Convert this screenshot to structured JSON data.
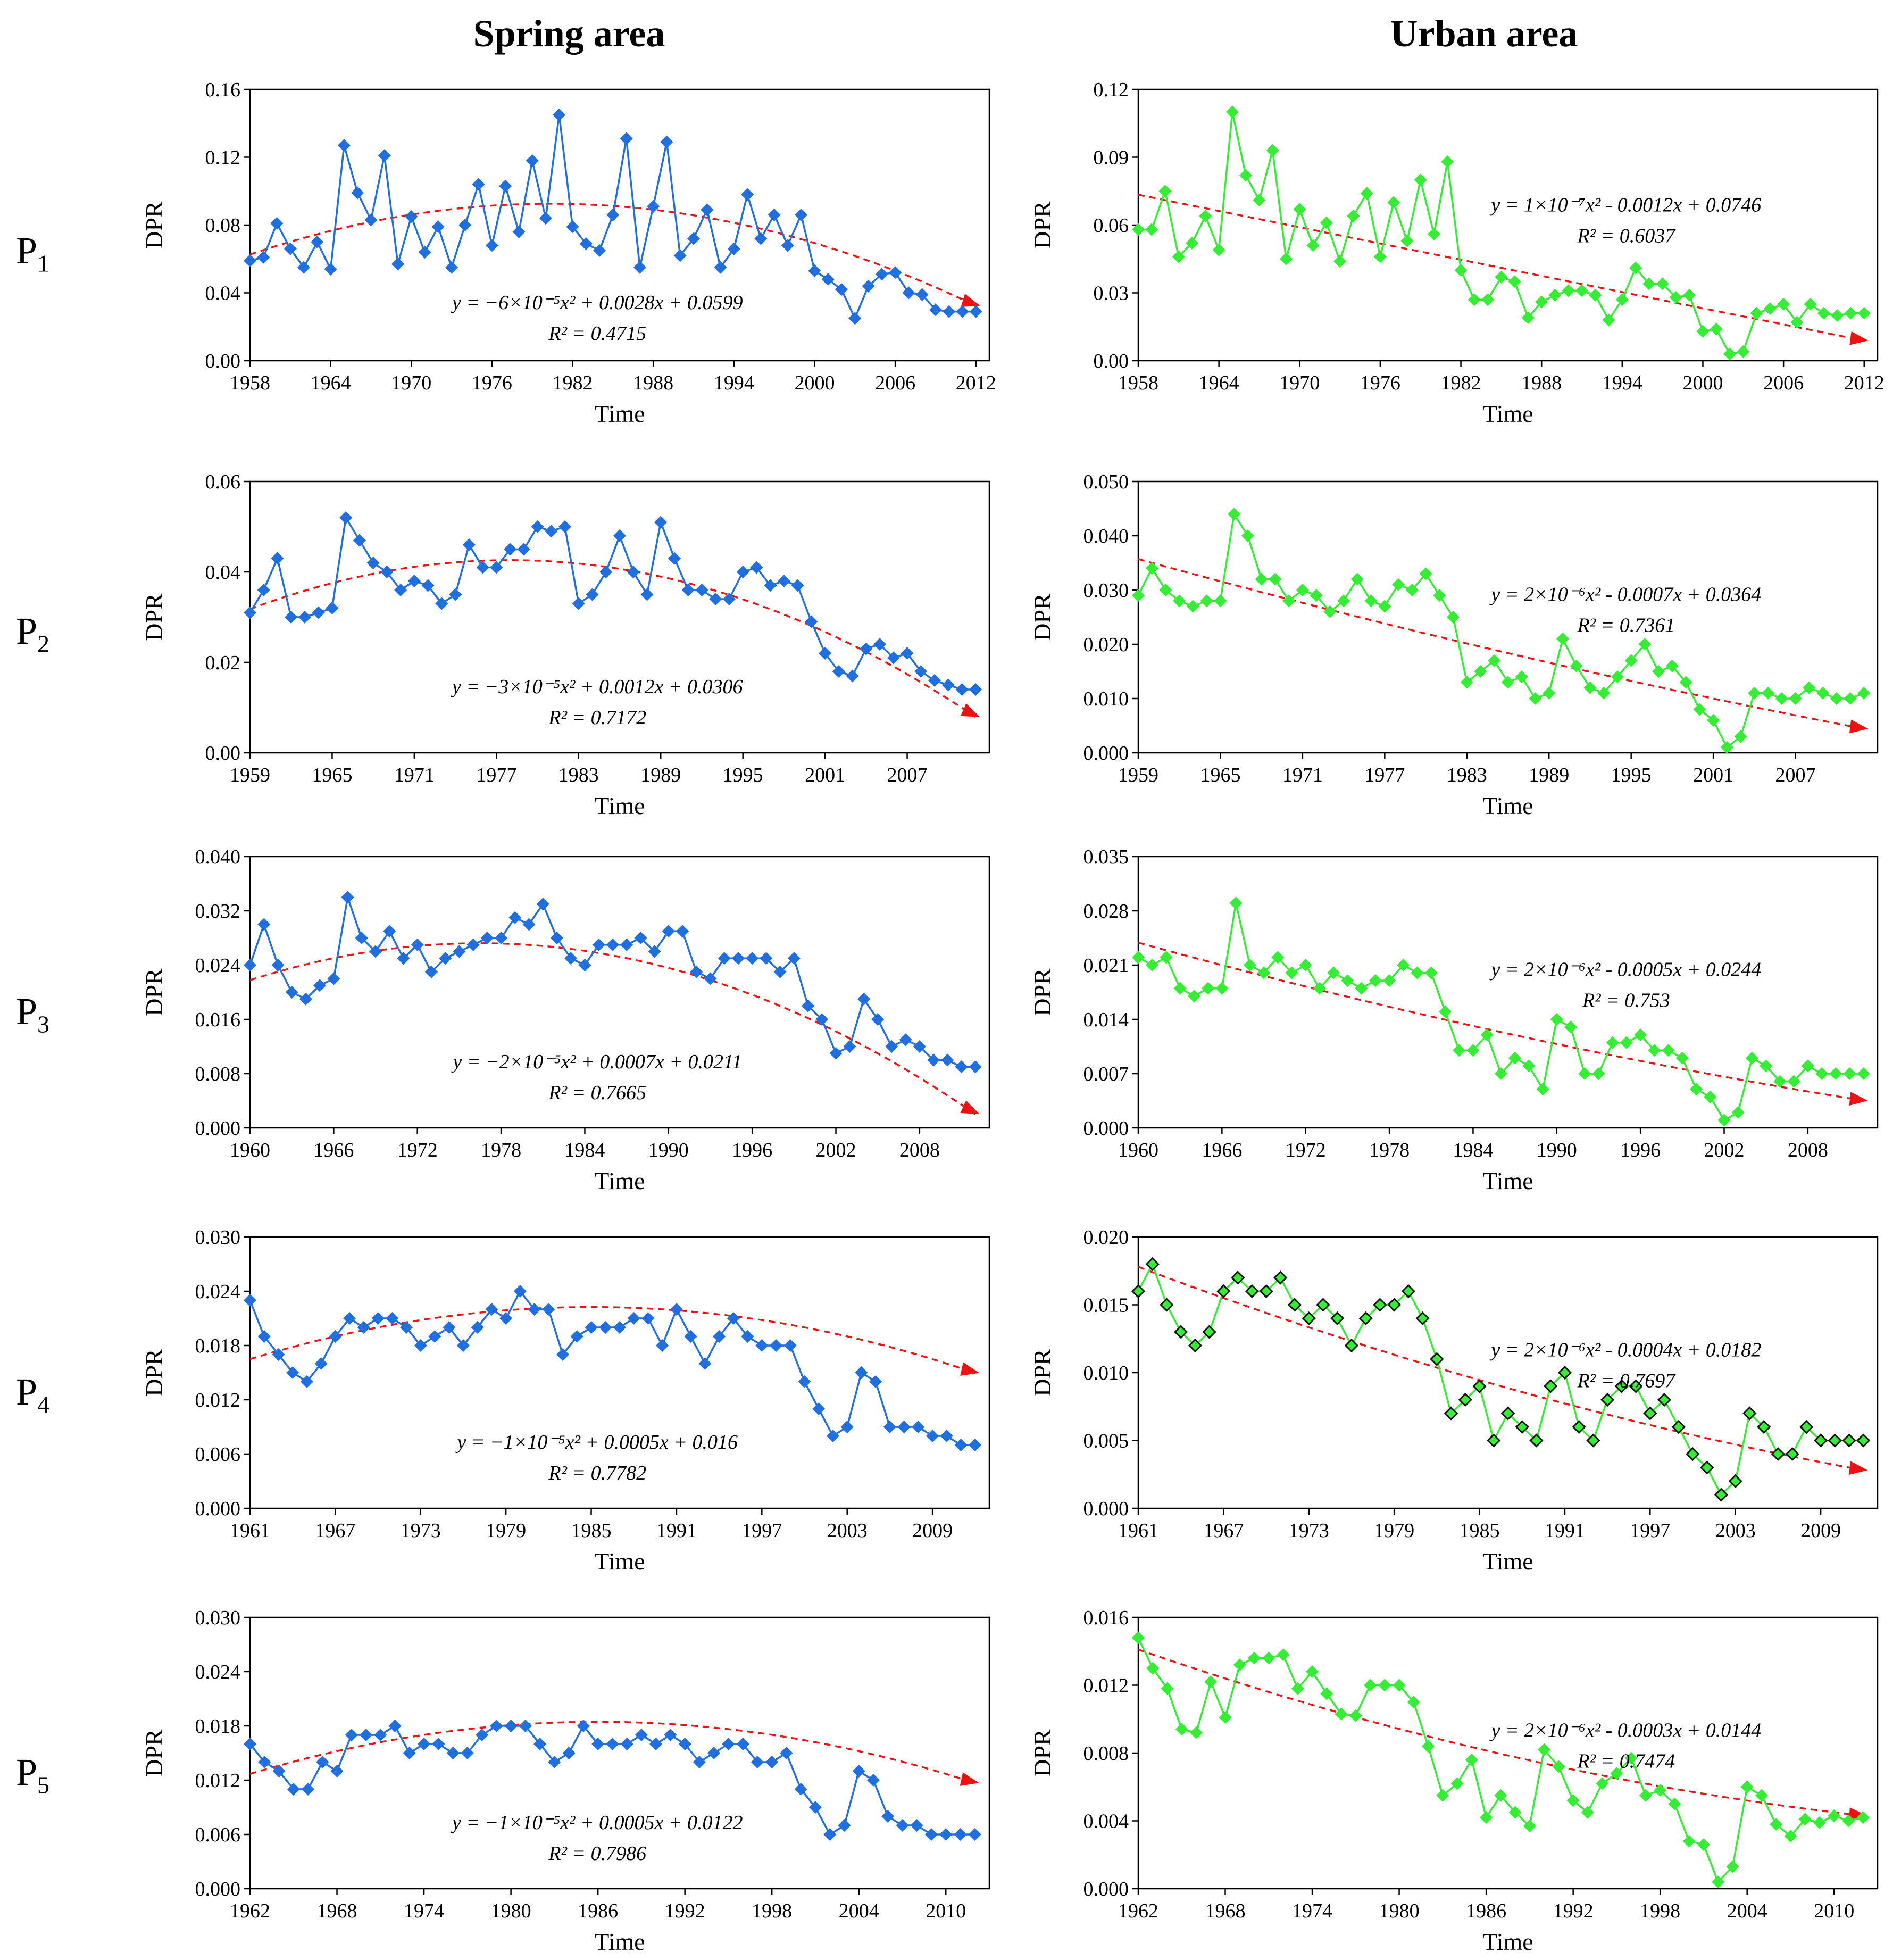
{
  "headers": {
    "left": "Spring area",
    "right": "Urban area"
  },
  "rows": [
    {
      "prefix": "P",
      "sub": "1"
    },
    {
      "prefix": "P",
      "sub": "2"
    },
    {
      "prefix": "P",
      "sub": "3"
    },
    {
      "prefix": "P",
      "sub": "4"
    },
    {
      "prefix": "P",
      "sub": "5"
    }
  ],
  "colors": {
    "spring": "#1f6fe0",
    "urban": "#33ee33",
    "trend": "#ee1111",
    "dark_edge": "#111111"
  },
  "chart_data": [
    {
      "id": "P1-spring",
      "type": "line",
      "xlabel": "Time",
      "ylabel": "DPR",
      "xstart": 1958,
      "xlim": [
        1958,
        2013
      ],
      "ylim": [
        0,
        0.16
      ],
      "yticks": [
        "0.00",
        "0.04",
        "0.08",
        "0.12",
        "0.16"
      ],
      "xticks": [
        "1958",
        "1964",
        "1970",
        "1976",
        "1982",
        "1988",
        "1994",
        "2000",
        "2006",
        "2012"
      ],
      "values": [
        0.059,
        0.061,
        0.081,
        0.066,
        0.055,
        0.07,
        0.054,
        0.127,
        0.099,
        0.083,
        0.121,
        0.057,
        0.085,
        0.064,
        0.079,
        0.055,
        0.08,
        0.104,
        0.068,
        0.103,
        0.076,
        0.118,
        0.084,
        0.145,
        0.079,
        0.069,
        0.065,
        0.086,
        0.131,
        0.055,
        0.091,
        0.129,
        0.062,
        0.072,
        0.089,
        0.055,
        0.066,
        0.098,
        0.072,
        0.086,
        0.068,
        0.086,
        0.053,
        0.048,
        0.042,
        0.025,
        0.044,
        0.051,
        0.052,
        0.04,
        0.039,
        0.03,
        0.029,
        0.029,
        0.029
      ],
      "trend": {
        "a": -6e-05,
        "b": 0.0028,
        "c": 0.0599
      },
      "equation": "y = −6×10⁻⁵x² + 0.0028x + 0.0599",
      "r2": "R² = 0.4715"
    },
    {
      "id": "P1-urban",
      "type": "line",
      "xlabel": "Time",
      "ylabel": "DPR",
      "xstart": 1958,
      "xlim": [
        1958,
        2013
      ],
      "ylim": [
        0,
        0.12
      ],
      "yticks": [
        "0.00",
        "0.03",
        "0.06",
        "0.09",
        "0.12"
      ],
      "xticks": [
        "1958",
        "1964",
        "1970",
        "1976",
        "1982",
        "1988",
        "1994",
        "2000",
        "2006",
        "2012"
      ],
      "values": [
        0.058,
        0.058,
        0.075,
        0.046,
        0.052,
        0.064,
        0.049,
        0.11,
        0.082,
        0.071,
        0.093,
        0.045,
        0.067,
        0.051,
        0.061,
        0.044,
        0.064,
        0.074,
        0.046,
        0.07,
        0.053,
        0.08,
        0.056,
        0.088,
        0.04,
        0.027,
        0.027,
        0.037,
        0.035,
        0.019,
        0.026,
        0.029,
        0.031,
        0.031,
        0.029,
        0.018,
        0.027,
        0.041,
        0.034,
        0.034,
        0.028,
        0.029,
        0.013,
        0.014,
        0.003,
        0.004,
        0.021,
        0.023,
        0.025,
        0.017,
        0.025,
        0.021,
        0.02,
        0.021,
        0.021
      ],
      "trend": {
        "a": 1e-07,
        "b": -0.0012,
        "c": 0.0746
      },
      "equation": "y = 1×10⁻⁷x² - 0.0012x + 0.0746",
      "r2": "R² = 0.6037"
    },
    {
      "id": "P2-spring",
      "type": "line",
      "xlabel": "Time",
      "ylabel": "DPR",
      "xstart": 1959,
      "xlim": [
        1959,
        2013
      ],
      "ylim": [
        0,
        0.06
      ],
      "yticks": [
        "0.00",
        "0.02",
        "0.04",
        "0.06"
      ],
      "xticks": [
        "1959",
        "1965",
        "1971",
        "1977",
        "1983",
        "1989",
        "1995",
        "2001",
        "2007"
      ],
      "values": [
        0.031,
        0.036,
        0.043,
        0.03,
        0.03,
        0.031,
        0.032,
        0.052,
        0.047,
        0.042,
        0.04,
        0.036,
        0.038,
        0.037,
        0.033,
        0.035,
        0.046,
        0.041,
        0.041,
        0.045,
        0.045,
        0.05,
        0.049,
        0.05,
        0.033,
        0.035,
        0.04,
        0.048,
        0.04,
        0.035,
        0.051,
        0.043,
        0.036,
        0.036,
        0.034,
        0.034,
        0.04,
        0.041,
        0.037,
        0.038,
        0.037,
        0.029,
        0.022,
        0.018,
        0.017,
        0.023,
        0.024,
        0.021,
        0.022,
        0.018,
        0.016,
        0.015,
        0.014,
        0.014
      ],
      "trend": {
        "a": -3e-05,
        "b": 0.0012,
        "c": 0.0306
      },
      "equation": "y = −3×10⁻⁵x² + 0.0012x + 0.0306",
      "r2": "R² = 0.7172"
    },
    {
      "id": "P2-urban",
      "type": "line",
      "xlabel": "Time",
      "ylabel": "DPR",
      "xstart": 1959,
      "xlim": [
        1959,
        2013
      ],
      "ylim": [
        0,
        0.05
      ],
      "yticks": [
        "0.000",
        "0.010",
        "0.020",
        "0.030",
        "0.040",
        "0.050"
      ],
      "xticks": [
        "1959",
        "1965",
        "1971",
        "1977",
        "1983",
        "1989",
        "1995",
        "2001",
        "2007"
      ],
      "values": [
        0.029,
        0.034,
        0.03,
        0.028,
        0.027,
        0.028,
        0.028,
        0.044,
        0.04,
        0.032,
        0.032,
        0.028,
        0.03,
        0.029,
        0.026,
        0.028,
        0.032,
        0.028,
        0.027,
        0.031,
        0.03,
        0.033,
        0.029,
        0.025,
        0.013,
        0.015,
        0.017,
        0.013,
        0.014,
        0.01,
        0.011,
        0.021,
        0.016,
        0.012,
        0.011,
        0.014,
        0.017,
        0.02,
        0.015,
        0.016,
        0.013,
        0.008,
        0.006,
        0.001,
        0.003,
        0.011,
        0.011,
        0.01,
        0.01,
        0.012,
        0.011,
        0.01,
        0.01,
        0.011
      ],
      "trend": {
        "a": 2e-06,
        "b": -0.0007,
        "c": 0.0364
      },
      "equation": "y = 2×10⁻⁶x² - 0.0007x + 0.0364",
      "r2": "R² = 0.7361"
    },
    {
      "id": "P3-spring",
      "type": "line",
      "xlabel": "Time",
      "ylabel": "DPR",
      "xstart": 1960,
      "xlim": [
        1960,
        2013
      ],
      "ylim": [
        0,
        0.04
      ],
      "yticks": [
        "0.000",
        "0.008",
        "0.016",
        "0.024",
        "0.032",
        "0.040"
      ],
      "xticks": [
        "1960",
        "1966",
        "1972",
        "1978",
        "1984",
        "1990",
        "1996",
        "2002",
        "2008"
      ],
      "values": [
        0.024,
        0.03,
        0.024,
        0.02,
        0.019,
        0.021,
        0.022,
        0.034,
        0.028,
        0.026,
        0.029,
        0.025,
        0.027,
        0.023,
        0.025,
        0.026,
        0.027,
        0.028,
        0.028,
        0.031,
        0.03,
        0.033,
        0.028,
        0.025,
        0.024,
        0.027,
        0.027,
        0.027,
        0.028,
        0.026,
        0.029,
        0.029,
        0.023,
        0.022,
        0.025,
        0.025,
        0.025,
        0.025,
        0.023,
        0.025,
        0.018,
        0.016,
        0.011,
        0.012,
        0.019,
        0.016,
        0.012,
        0.013,
        0.012,
        0.01,
        0.01,
        0.009,
        0.009
      ],
      "trend": {
        "a": -2e-05,
        "b": 0.0007,
        "c": 0.0211
      },
      "equation": "y = −2×10⁻⁵x² + 0.0007x + 0.0211",
      "r2": "R² = 0.7665"
    },
    {
      "id": "P3-urban",
      "type": "line",
      "xlabel": "Time",
      "ylabel": "DPR",
      "xstart": 1960,
      "xlim": [
        1960,
        2013
      ],
      "ylim": [
        0,
        0.035
      ],
      "yticks": [
        "0.000",
        "0.007",
        "0.014",
        "0.021",
        "0.028",
        "0.035"
      ],
      "xticks": [
        "1960",
        "1966",
        "1972",
        "1978",
        "1984",
        "1990",
        "1996",
        "2002",
        "2008"
      ],
      "values": [
        0.022,
        0.021,
        0.022,
        0.018,
        0.017,
        0.018,
        0.018,
        0.029,
        0.021,
        0.02,
        0.022,
        0.02,
        0.021,
        0.018,
        0.02,
        0.019,
        0.018,
        0.019,
        0.019,
        0.021,
        0.02,
        0.02,
        0.015,
        0.01,
        0.01,
        0.012,
        0.007,
        0.009,
        0.008,
        0.005,
        0.014,
        0.013,
        0.007,
        0.007,
        0.011,
        0.011,
        0.012,
        0.01,
        0.01,
        0.009,
        0.005,
        0.004,
        0.001,
        0.002,
        0.009,
        0.008,
        0.006,
        0.006,
        0.008,
        0.007,
        0.007,
        0.007,
        0.007
      ],
      "trend": {
        "a": 2e-06,
        "b": -0.0005,
        "c": 0.0244
      },
      "equation": "y = 2×10⁻⁶x² - 0.0005x + 0.0244",
      "r2": "R² = 0.753"
    },
    {
      "id": "P4-spring",
      "type": "line",
      "xlabel": "Time",
      "ylabel": "DPR",
      "xstart": 1961,
      "xlim": [
        1961,
        2013
      ],
      "ylim": [
        0,
        0.03
      ],
      "yticks": [
        "0.000",
        "0.006",
        "0.012",
        "0.018",
        "0.024",
        "0.030"
      ],
      "xticks": [
        "1961",
        "1967",
        "1973",
        "1979",
        "1985",
        "1991",
        "1997",
        "2003",
        "2009"
      ],
      "values": [
        0.023,
        0.019,
        0.017,
        0.015,
        0.014,
        0.016,
        0.019,
        0.021,
        0.02,
        0.021,
        0.021,
        0.02,
        0.018,
        0.019,
        0.02,
        0.018,
        0.02,
        0.022,
        0.021,
        0.024,
        0.022,
        0.022,
        0.017,
        0.019,
        0.02,
        0.02,
        0.02,
        0.021,
        0.021,
        0.018,
        0.022,
        0.019,
        0.016,
        0.019,
        0.021,
        0.019,
        0.018,
        0.018,
        0.018,
        0.014,
        0.011,
        0.008,
        0.009,
        0.015,
        0.014,
        0.009,
        0.009,
        0.009,
        0.008,
        0.008,
        0.007,
        0.007
      ],
      "trend": {
        "a": -1e-05,
        "b": 0.0005,
        "c": 0.016
      },
      "equation": "y = −1×10⁻⁵x² + 0.0005x + 0.016",
      "r2": "R² = 0.7782"
    },
    {
      "id": "P4-urban",
      "type": "line",
      "xlabel": "Time",
      "ylabel": "DPR",
      "xstart": 1961,
      "xlim": [
        1961,
        2013
      ],
      "ylim": [
        0,
        0.02
      ],
      "yticks": [
        "0.000",
        "0.005",
        "0.010",
        "0.015",
        "0.020"
      ],
      "xticks": [
        "1961",
        "1967",
        "1973",
        "1979",
        "1985",
        "1991",
        "1997",
        "2003",
        "2009"
      ],
      "dark_edges": true,
      "values": [
        0.016,
        0.018,
        0.015,
        0.013,
        0.012,
        0.013,
        0.016,
        0.017,
        0.016,
        0.016,
        0.017,
        0.015,
        0.014,
        0.015,
        0.014,
        0.012,
        0.014,
        0.015,
        0.015,
        0.016,
        0.014,
        0.011,
        0.007,
        0.008,
        0.009,
        0.005,
        0.007,
        0.006,
        0.005,
        0.009,
        0.01,
        0.006,
        0.005,
        0.008,
        0.009,
        0.009,
        0.007,
        0.008,
        0.006,
        0.004,
        0.003,
        0.001,
        0.002,
        0.007,
        0.006,
        0.004,
        0.004,
        0.006,
        0.005,
        0.005,
        0.005,
        0.005
      ],
      "trend": {
        "a": 2e-06,
        "b": -0.0004,
        "c": 0.0182
      },
      "equation": "y = 2×10⁻⁶x² - 0.0004x + 0.0182",
      "r2": "R² = 0.7697"
    },
    {
      "id": "P5-spring",
      "type": "line",
      "xlabel": "Time",
      "ylabel": "DPR",
      "xstart": 1962,
      "xlim": [
        1962,
        2013
      ],
      "ylim": [
        0,
        0.03
      ],
      "yticks": [
        "0.000",
        "0.006",
        "0.012",
        "0.018",
        "0.024",
        "0.030"
      ],
      "xticks": [
        "1962",
        "1968",
        "1974",
        "1980",
        "1986",
        "1992",
        "1998",
        "2004",
        "2010"
      ],
      "values": [
        0.016,
        0.014,
        0.013,
        0.011,
        0.011,
        0.014,
        0.013,
        0.017,
        0.017,
        0.017,
        0.018,
        0.015,
        0.016,
        0.016,
        0.015,
        0.015,
        0.017,
        0.018,
        0.018,
        0.018,
        0.016,
        0.014,
        0.015,
        0.018,
        0.016,
        0.016,
        0.016,
        0.017,
        0.016,
        0.017,
        0.016,
        0.014,
        0.015,
        0.016,
        0.016,
        0.014,
        0.014,
        0.015,
        0.011,
        0.009,
        0.006,
        0.007,
        0.013,
        0.012,
        0.008,
        0.007,
        0.007,
        0.006,
        0.006,
        0.006,
        0.006
      ],
      "trend": {
        "a": -1e-05,
        "b": 0.0005,
        "c": 0.0122
      },
      "equation": "y = −1×10⁻⁵x² + 0.0005x + 0.0122",
      "r2": "R² = 0.7986"
    },
    {
      "id": "P5-urban",
      "type": "line",
      "xlabel": "Time",
      "ylabel": "DPR",
      "xstart": 1962,
      "xlim": [
        1962,
        2013
      ],
      "ylim": [
        0,
        0.016
      ],
      "yticks": [
        "0.000",
        "0.004",
        "0.008",
        "0.012",
        "0.016"
      ],
      "xticks": [
        "1962",
        "1968",
        "1974",
        "1980",
        "1986",
        "1992",
        "1998",
        "2004",
        "2010"
      ],
      "values": [
        0.0148,
        0.013,
        0.0118,
        0.0094,
        0.0092,
        0.0122,
        0.0101,
        0.0132,
        0.0136,
        0.0136,
        0.0138,
        0.0118,
        0.0128,
        0.0115,
        0.0103,
        0.0102,
        0.012,
        0.012,
        0.012,
        0.011,
        0.0084,
        0.0055,
        0.0062,
        0.0076,
        0.0042,
        0.0055,
        0.0045,
        0.0037,
        0.0082,
        0.0072,
        0.0052,
        0.0045,
        0.0062,
        0.0068,
        0.0077,
        0.0055,
        0.0058,
        0.005,
        0.0028,
        0.0026,
        0.0004,
        0.0013,
        0.006,
        0.0055,
        0.0038,
        0.0031,
        0.0041,
        0.0039,
        0.0043,
        0.004,
        0.0042
      ],
      "trend": {
        "a": 2e-06,
        "b": -0.0003,
        "c": 0.0144
      },
      "equation": "y = 2×10⁻⁶x² - 0.0003x + 0.0144",
      "r2": "R² = 0.7474"
    }
  ]
}
